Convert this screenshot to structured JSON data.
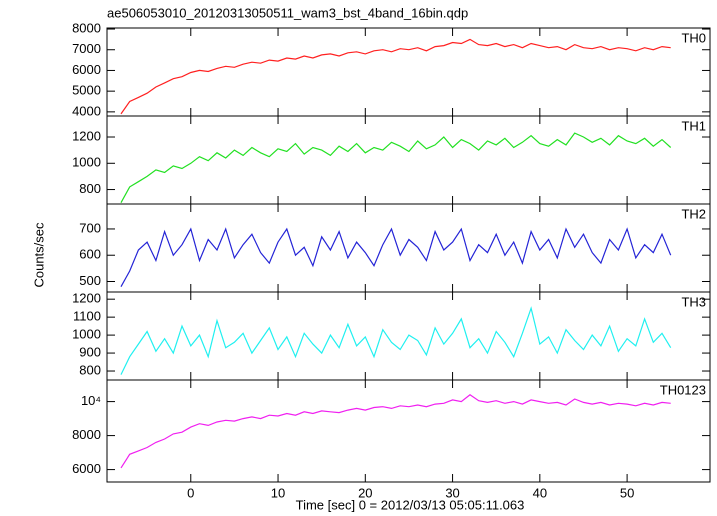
{
  "chart_data": {
    "type": "line",
    "title": "ae506053010_20120313050511_wam3_bst_4band_16bin.qdp",
    "xlabel": "Time [sec] 0 = 2012/03/13 05:05:11.063",
    "ylabel": "Counts/sec",
    "xlim": [
      -9.6,
      59.5
    ],
    "xticks": [
      0,
      10,
      20,
      30,
      40,
      50
    ],
    "x": [
      -8,
      -7,
      -6,
      -5,
      -4,
      -3,
      -2,
      -1,
      0,
      1,
      2,
      3,
      4,
      5,
      6,
      7,
      8,
      9,
      10,
      11,
      12,
      13,
      14,
      15,
      16,
      17,
      18,
      19,
      20,
      21,
      22,
      23,
      24,
      25,
      26,
      27,
      28,
      29,
      30,
      31,
      32,
      33,
      34,
      35,
      36,
      37,
      38,
      39,
      40,
      41,
      42,
      43,
      44,
      45,
      46,
      47,
      48,
      49,
      50,
      51,
      52,
      53,
      54,
      55
    ],
    "panels": [
      {
        "name": "TH0",
        "color": "#ff2020",
        "ylim": [
          3800,
          8050
        ],
        "yticks": [
          4000,
          5000,
          6000,
          7000,
          8000
        ],
        "values": [
          3900,
          4500,
          4700,
          4900,
          5200,
          5400,
          5600,
          5700,
          5900,
          6000,
          5950,
          6100,
          6200,
          6150,
          6300,
          6400,
          6350,
          6500,
          6450,
          6600,
          6550,
          6700,
          6600,
          6750,
          6800,
          6700,
          6850,
          6900,
          6800,
          6950,
          7000,
          6900,
          7050,
          7000,
          7100,
          6950,
          7150,
          7200,
          7350,
          7300,
          7500,
          7250,
          7200,
          7300,
          7150,
          7250,
          7100,
          7300,
          7200,
          7100,
          7150,
          7000,
          7250,
          7100,
          7050,
          7150,
          7000,
          7100,
          7050,
          6950,
          7100,
          7000,
          7150,
          7100
        ]
      },
      {
        "name": "TH1",
        "color": "#22e022",
        "ylim": [
          690,
          1360
        ],
        "yticks": [
          800,
          1000,
          1200
        ],
        "values": [
          700,
          820,
          860,
          900,
          950,
          930,
          980,
          960,
          1000,
          1050,
          1020,
          1080,
          1040,
          1100,
          1060,
          1120,
          1080,
          1050,
          1110,
          1090,
          1150,
          1070,
          1120,
          1100,
          1060,
          1130,
          1090,
          1150,
          1080,
          1120,
          1100,
          1160,
          1130,
          1090,
          1170,
          1110,
          1140,
          1200,
          1120,
          1180,
          1150,
          1100,
          1170,
          1140,
          1190,
          1120,
          1160,
          1210,
          1150,
          1130,
          1180,
          1140,
          1230,
          1200,
          1160,
          1190,
          1140,
          1210,
          1170,
          1150,
          1190,
          1130,
          1180,
          1120
        ]
      },
      {
        "name": "TH2",
        "color": "#2424d6",
        "ylim": [
          460,
          795
        ],
        "yticks": [
          500,
          600,
          700
        ],
        "values": [
          480,
          540,
          620,
          650,
          580,
          690,
          600,
          640,
          700,
          580,
          660,
          620,
          700,
          590,
          640,
          680,
          610,
          570,
          650,
          700,
          600,
          630,
          560,
          670,
          620,
          690,
          590,
          650,
          610,
          560,
          640,
          700,
          600,
          660,
          630,
          580,
          690,
          620,
          650,
          700,
          580,
          640,
          610,
          680,
          600,
          650,
          570,
          690,
          620,
          660,
          590,
          700,
          630,
          680,
          610,
          570,
          660,
          620,
          700,
          590,
          640,
          610,
          680,
          600
        ]
      },
      {
        "name": "TH3",
        "color": "#20f0f0",
        "ylim": [
          750,
          1240
        ],
        "yticks": [
          800,
          900,
          1000,
          1100,
          1200
        ],
        "values": [
          780,
          880,
          950,
          1020,
          910,
          980,
          900,
          1050,
          940,
          1000,
          880,
          1080,
          930,
          960,
          1010,
          900,
          970,
          1040,
          920,
          990,
          880,
          1010,
          950,
          900,
          1000,
          930,
          1060,
          940,
          990,
          880,
          1030,
          960,
          920,
          1000,
          970,
          890,
          1040,
          950,
          1010,
          1090,
          930,
          980,
          900,
          1020,
          960,
          880,
          1010,
          1150,
          950,
          990,
          900,
          1030,
          970,
          920,
          1000,
          940,
          1050,
          910,
          980,
          940,
          1090,
          960,
          1010,
          930
        ]
      },
      {
        "name": "TH0123",
        "color": "#f020f0",
        "ylim": [
          5270,
          11270
        ],
        "yticks": [
          6000,
          8000,
          {
            "value": 10000,
            "label": "10⁴"
          }
        ],
        "values": [
          6100,
          6900,
          7100,
          7300,
          7600,
          7800,
          8100,
          8200,
          8500,
          8700,
          8600,
          8800,
          8900,
          8850,
          9000,
          9100,
          9000,
          9200,
          9150,
          9300,
          9200,
          9400,
          9300,
          9450,
          9400,
          9350,
          9500,
          9600,
          9500,
          9650,
          9700,
          9600,
          9750,
          9700,
          9800,
          9700,
          9850,
          9900,
          10100,
          10000,
          10400,
          10050,
          9950,
          10050,
          9900,
          10000,
          9850,
          10100,
          10000,
          9900,
          9950,
          9800,
          10150,
          9950,
          9850,
          9950,
          9800,
          9900,
          9850,
          9750,
          9900,
          9800,
          9950,
          9900
        ]
      }
    ]
  }
}
